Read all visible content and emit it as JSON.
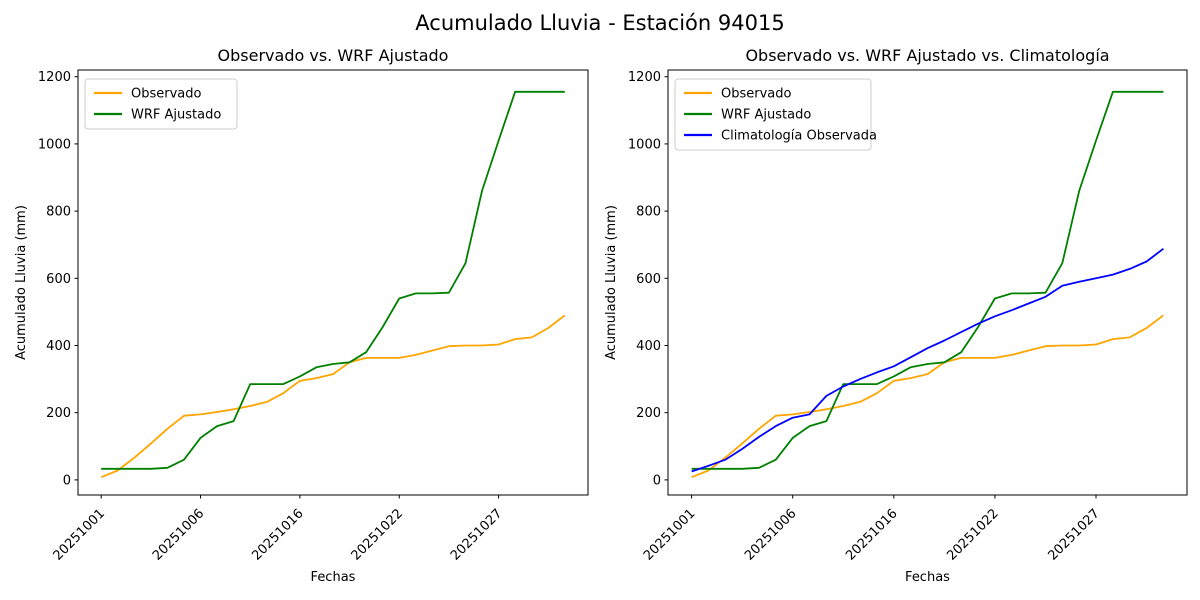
{
  "figure_title": "Acumulado Lluvia - Estación 94015",
  "chart_data": [
    {
      "type": "line",
      "title": "Observado vs. WRF Ajustado",
      "xlabel": "Fechas",
      "ylabel": "Acumulado Lluvia (mm)",
      "n_points": 29,
      "grid": false,
      "legend_position": "upper left",
      "yticks": [
        0,
        200,
        400,
        600,
        800,
        1000,
        1200
      ],
      "ylim": [
        -45,
        1220
      ],
      "xtick_positions": [
        0,
        6,
        12,
        18,
        24
      ],
      "xtick_labels": [
        "20251001",
        "20251006",
        "20251016",
        "20251022",
        "20251027"
      ],
      "series": [
        {
          "name": "Observado",
          "color": "#FFA500",
          "values": [
            8,
            28,
            66,
            108,
            152,
            191,
            195,
            202,
            210,
            220,
            232,
            258,
            295,
            303,
            315,
            350,
            363,
            363,
            363,
            372,
            385,
            398,
            400,
            400,
            403,
            419,
            424,
            452,
            490
          ]
        },
        {
          "name": "WRF Ajustado",
          "color": "#008000",
          "values": [
            33,
            33,
            33,
            33,
            36,
            60,
            125,
            160,
            175,
            285,
            285,
            285,
            308,
            335,
            345,
            350,
            380,
            455,
            540,
            555,
            555,
            557,
            645,
            860,
            1010,
            1155,
            1155,
            1155,
            1155
          ]
        }
      ]
    },
    {
      "type": "line",
      "title": "Observado vs. WRF Ajustado vs. Climatología",
      "xlabel": "Fechas",
      "ylabel": "Acumulado Lluvia (mm)",
      "n_points": 29,
      "grid": false,
      "legend_position": "upper left",
      "yticks": [
        0,
        200,
        400,
        600,
        800,
        1000,
        1200
      ],
      "ylim": [
        -45,
        1220
      ],
      "xtick_positions": [
        0,
        6,
        12,
        18,
        24
      ],
      "xtick_labels": [
        "20251001",
        "20251006",
        "20251016",
        "20251022",
        "20251027"
      ],
      "series": [
        {
          "name": "Observado",
          "color": "#FFA500",
          "values": [
            8,
            28,
            66,
            108,
            152,
            191,
            195,
            202,
            210,
            220,
            232,
            258,
            295,
            303,
            315,
            350,
            363,
            363,
            363,
            372,
            385,
            398,
            400,
            400,
            403,
            419,
            424,
            452,
            490
          ]
        },
        {
          "name": "WRF Ajustado",
          "color": "#008000",
          "values": [
            33,
            33,
            33,
            33,
            36,
            60,
            125,
            160,
            175,
            285,
            285,
            285,
            308,
            335,
            345,
            350,
            380,
            455,
            540,
            555,
            555,
            557,
            645,
            860,
            1010,
            1155,
            1155,
            1155,
            1155
          ]
        },
        {
          "name": "Climatología Observada",
          "color": "#0000FF",
          "values": [
            25,
            42,
            60,
            92,
            128,
            160,
            185,
            195,
            250,
            278,
            300,
            320,
            338,
            365,
            392,
            415,
            440,
            465,
            487,
            505,
            525,
            545,
            578,
            590,
            600,
            611,
            628,
            650,
            688
          ]
        }
      ]
    }
  ]
}
